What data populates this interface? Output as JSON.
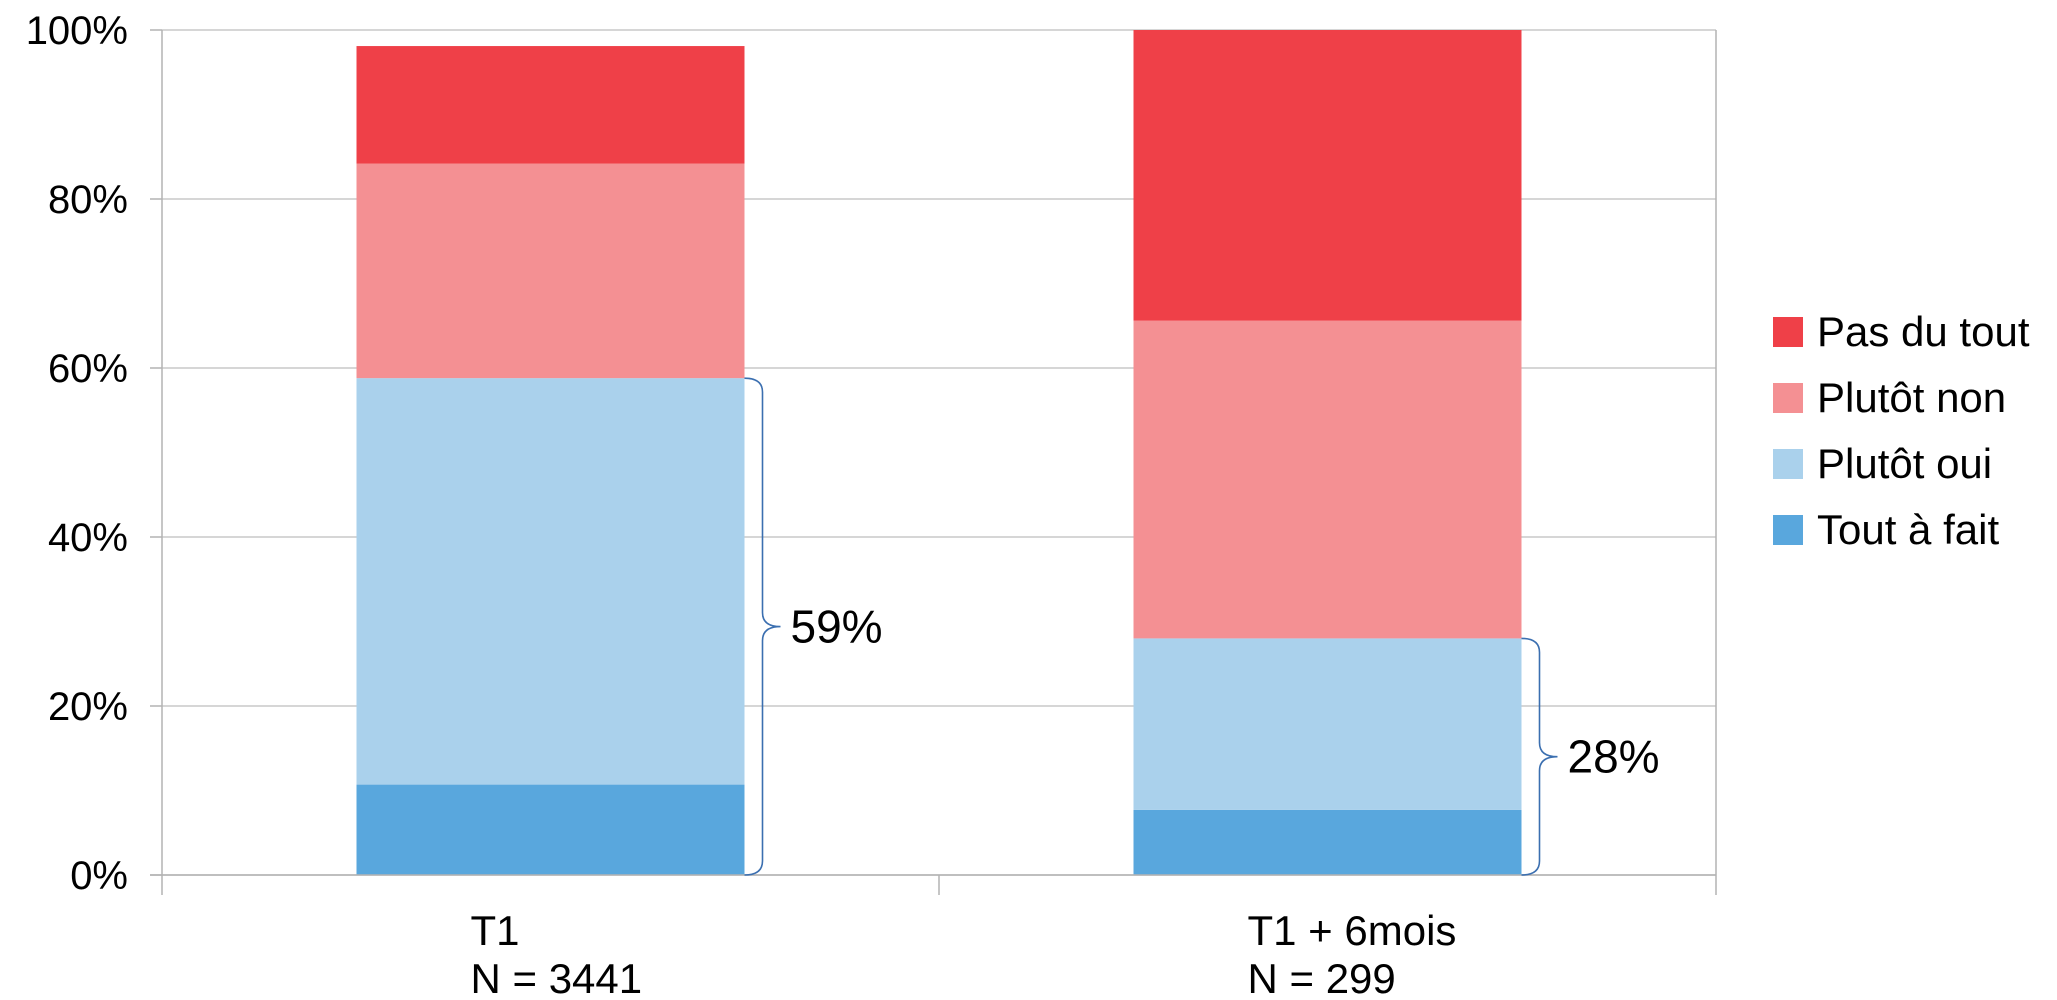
{
  "chart_data": {
    "type": "bar",
    "stacked": true,
    "categories": [
      "T1",
      "T1 + 6mois"
    ],
    "category_sublabels": [
      "N = 3441",
      "N = 299"
    ],
    "series": [
      {
        "name": "Tout à fait",
        "color": "#59A7DD",
        "values": [
          10.7,
          7.7
        ]
      },
      {
        "name": "Plutôt oui",
        "color": "#AAD1EC",
        "values": [
          48.1,
          20.3
        ]
      },
      {
        "name": "Plutôt non",
        "color": "#F49093",
        "values": [
          25.4,
          37.6
        ]
      },
      {
        "name": "Pas du tout",
        "color": "#EF4048",
        "values": [
          13.9,
          34.4
        ]
      }
    ],
    "ylim": [
      0,
      100
    ],
    "yticks": [
      0,
      20,
      40,
      60,
      80,
      100
    ],
    "ytick_labels": [
      "0%",
      "20%",
      "40%",
      "60%",
      "80%",
      "100%"
    ],
    "grid": true,
    "legend_position": "right",
    "legend_order": [
      "Pas du tout",
      "Plutôt non",
      "Plutôt oui",
      "Tout à fait"
    ],
    "annotations": [
      {
        "category": "T1",
        "from": 0,
        "to": 58.8,
        "text": "59%"
      },
      {
        "category": "T1 + 6mois",
        "from": 0,
        "to": 28.0,
        "text": "28%"
      }
    ]
  }
}
